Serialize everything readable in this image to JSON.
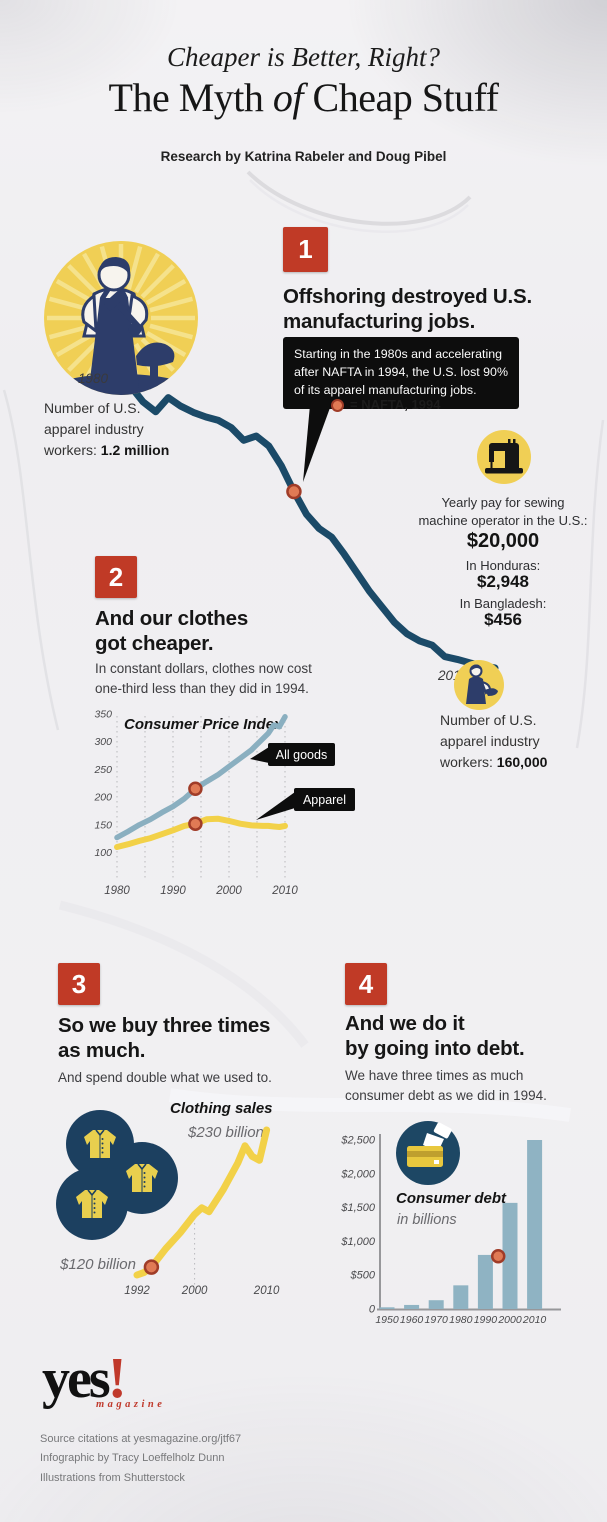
{
  "page": {
    "kicker": "Cheaper is Better, Right?",
    "title_pre": "The Myth ",
    "title_italic": "of",
    "title_post": " Cheap Stuff",
    "byline": "Research by Katrina Rabeler and Doug Pibel"
  },
  "colors": {
    "accent_red": "#c03a26",
    "navy_line": "#1b4a68",
    "illustration_navy": "#2d3d6a",
    "circle_navy": "#1c4060",
    "yellow": "#f0cf55",
    "chart_yellow": "#f2d148",
    "blue_gray": "#8aafc0",
    "marker_orange": "#e07a55",
    "marker_ring": "#a03c28",
    "callout_black": "#0d0d0d"
  },
  "icons": [
    "cobbler-icon",
    "sewing-machine-icon",
    "garment-worker-icon",
    "jackets-icon",
    "credit-card-hand-icon",
    "nafta-dot-icon",
    "yes-magazine-logo"
  ],
  "sections": {
    "s1": {
      "num": "1",
      "heading": "Offshoring destroyed U.S.\nmanufacturing jobs.",
      "callout": "Starting in the 1980s and accelerating\nafter NAFTA in 1994, the U.S. lost 90%\nof its apparel manufacturing jobs.",
      "legend": "= NAFTA, 1994",
      "year_start": "1980",
      "start_pre": "Number of U.S.\napparel industry\nworkers: ",
      "start_bold": "1.2 million",
      "year_end": "2010",
      "end_pre": "Number of U.S.\napparel industry\nworkers: ",
      "end_bold": "160,000",
      "pay_us_label": "Yearly pay for sewing\nmachine operator in the U.S.:",
      "pay_us_value": "$20,000",
      "pay_h_label": "In Honduras:",
      "pay_h_value": "$2,948",
      "pay_b_label": "In Bangladesh:",
      "pay_b_value": "$456"
    },
    "s2": {
      "num": "2",
      "heading": "And our clothes\ngot cheaper.",
      "sub": "In constant dollars, clothes now cost\none-third less than they did in 1994."
    },
    "s3": {
      "num": "3",
      "heading": "So we buy three times\nas much.",
      "sub": "And spend double what we used to."
    },
    "s4": {
      "num": "4",
      "heading": "And we do it\nby going into debt.",
      "sub": "We have three times as much\nconsumer debt as we did in 1994."
    }
  },
  "footer": {
    "logo_text": "yes",
    "logo_bang": "!",
    "logo_sub": "magazine",
    "lines": "Source citations at yesmagazine.org/jtf67\nInfographic by Tracy Loeffelholz Dunn\nIllustrations from Shutterstock"
  },
  "chart_data": [
    {
      "id": "apparel-workers",
      "type": "line",
      "title": "Number of U.S. apparel industry workers, 1980-2010",
      "x": [
        1980,
        1981,
        1982,
        1983,
        1984,
        1985,
        1986,
        1987,
        1988,
        1989,
        1990,
        1991,
        1992,
        1993,
        1994,
        1995,
        1996,
        1997,
        1998,
        1999,
        2000,
        2001,
        2002,
        2003,
        2004,
        2005,
        2006,
        2007,
        2008,
        2009,
        2010
      ],
      "values_thousands": [
        1200,
        1150,
        1095,
        1060,
        1110,
        1080,
        1058,
        1042,
        1030,
        1005,
        960,
        975,
        940,
        870,
        780,
        700,
        650,
        620,
        560,
        495,
        430,
        375,
        320,
        280,
        255,
        240,
        200,
        190,
        178,
        168,
        160
      ],
      "start_label": "1980",
      "start_value": "1.2 million",
      "end_label": "2010",
      "end_value": "160,000",
      "marker": {
        "year": 1994,
        "value_thousands": 780,
        "label": "NAFTA, 1994"
      }
    },
    {
      "id": "consumer-price-index",
      "type": "line",
      "title": "Consumer Price Index",
      "x": [
        1980,
        1982,
        1984,
        1986,
        1988,
        1990,
        1992,
        1994,
        1996,
        1998,
        2000,
        2002,
        2004,
        2006,
        2007,
        2008,
        2009,
        2010
      ],
      "series": [
        {
          "name": "All goods",
          "values": [
            127,
            138,
            150,
            160,
            172,
            183,
            197,
            215,
            228,
            240,
            255,
            270,
            285,
            305,
            315,
            330,
            327,
            345
          ]
        },
        {
          "name": "Apparel",
          "values": [
            110,
            115,
            121,
            126,
            133,
            140,
            148,
            152,
            160,
            161,
            157,
            152,
            149,
            148,
            148,
            147,
            146,
            148
          ]
        }
      ],
      "ylim": [
        100,
        350
      ],
      "yticks": [
        350,
        300,
        250,
        200,
        150,
        100
      ],
      "xticks": [
        1980,
        1990,
        2000,
        2010
      ],
      "grid_years": [
        1980,
        1985,
        1990,
        1995,
        2000,
        2005,
        2010
      ],
      "marker": {
        "year": 1994,
        "all_goods": 215,
        "apparel": 152
      }
    },
    {
      "id": "clothing-sales",
      "type": "line",
      "title": "Clothing sales",
      "x": [
        1992,
        1993,
        1994,
        1996,
        1998,
        2000,
        2001,
        2002,
        2004,
        2006,
        2007,
        2008,
        2009,
        2010
      ],
      "values_billions": [
        120,
        122,
        126,
        140,
        152,
        166,
        171,
        168,
        185,
        205,
        218,
        210,
        207,
        230
      ],
      "start_label": "$120 billion",
      "end_label": "$230 billion",
      "xticks": [
        1992,
        2000,
        2010
      ],
      "marker": {
        "year": 1994,
        "value_billions": 126
      }
    },
    {
      "id": "consumer-debt",
      "type": "bar",
      "title": "Consumer debt",
      "subtitle": "in billions",
      "categories": [
        "1950",
        "1960",
        "1970",
        "1980",
        "1990",
        "2000",
        "2010"
      ],
      "values_billions": [
        25,
        60,
        130,
        350,
        800,
        1570,
        2500
      ],
      "ytick_labels": [
        "$2,500",
        "$2,000",
        "$1,500",
        "$1,000",
        "$500",
        "0"
      ],
      "ytick_values": [
        2500,
        2000,
        1500,
        1000,
        500,
        0
      ],
      "ylim": [
        0,
        2500
      ],
      "marker": {
        "year": 1994,
        "value_billions": 780
      }
    }
  ]
}
